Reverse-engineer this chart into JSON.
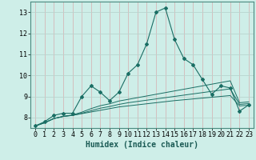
{
  "xlabel": "Humidex (Indice chaleur)",
  "bg_color": "#ceeee8",
  "grid_color_h": "#b8d4ce",
  "grid_color_v": "#d4b8b8",
  "line_color": "#1a6e64",
  "xlim": [
    -0.5,
    23.5
  ],
  "ylim": [
    7.5,
    13.5
  ],
  "yticks": [
    8,
    9,
    10,
    11,
    12,
    13
  ],
  "xticks": [
    0,
    1,
    2,
    3,
    4,
    5,
    6,
    7,
    8,
    9,
    10,
    11,
    12,
    13,
    14,
    15,
    16,
    17,
    18,
    19,
    20,
    21,
    22,
    23
  ],
  "main_line": [
    7.6,
    7.8,
    8.1,
    8.2,
    8.2,
    9.0,
    9.5,
    9.2,
    8.8,
    9.2,
    10.1,
    10.5,
    11.5,
    13.0,
    13.2,
    11.7,
    10.8,
    10.5,
    9.8,
    9.1,
    9.5,
    9.4,
    8.3,
    8.6
  ],
  "flat_lines": [
    [
      7.6,
      7.75,
      7.95,
      8.05,
      8.1,
      8.18,
      8.26,
      8.34,
      8.42,
      8.5,
      8.55,
      8.6,
      8.65,
      8.7,
      8.75,
      8.8,
      8.84,
      8.88,
      8.92,
      8.96,
      9.0,
      9.04,
      8.55,
      8.58
    ],
    [
      7.6,
      7.75,
      7.95,
      8.05,
      8.1,
      8.2,
      8.32,
      8.44,
      8.52,
      8.62,
      8.7,
      8.76,
      8.82,
      8.88,
      8.94,
      9.0,
      9.06,
      9.12,
      9.18,
      9.24,
      9.3,
      9.36,
      8.62,
      8.66
    ],
    [
      7.6,
      7.75,
      7.95,
      8.05,
      8.12,
      8.25,
      8.42,
      8.56,
      8.65,
      8.78,
      8.86,
      8.94,
      9.02,
      9.1,
      9.18,
      9.26,
      9.34,
      9.42,
      9.5,
      9.58,
      9.66,
      9.74,
      8.7,
      8.74
    ]
  ],
  "xlabel_fontsize": 7.0,
  "tick_fontsize": 6.0
}
